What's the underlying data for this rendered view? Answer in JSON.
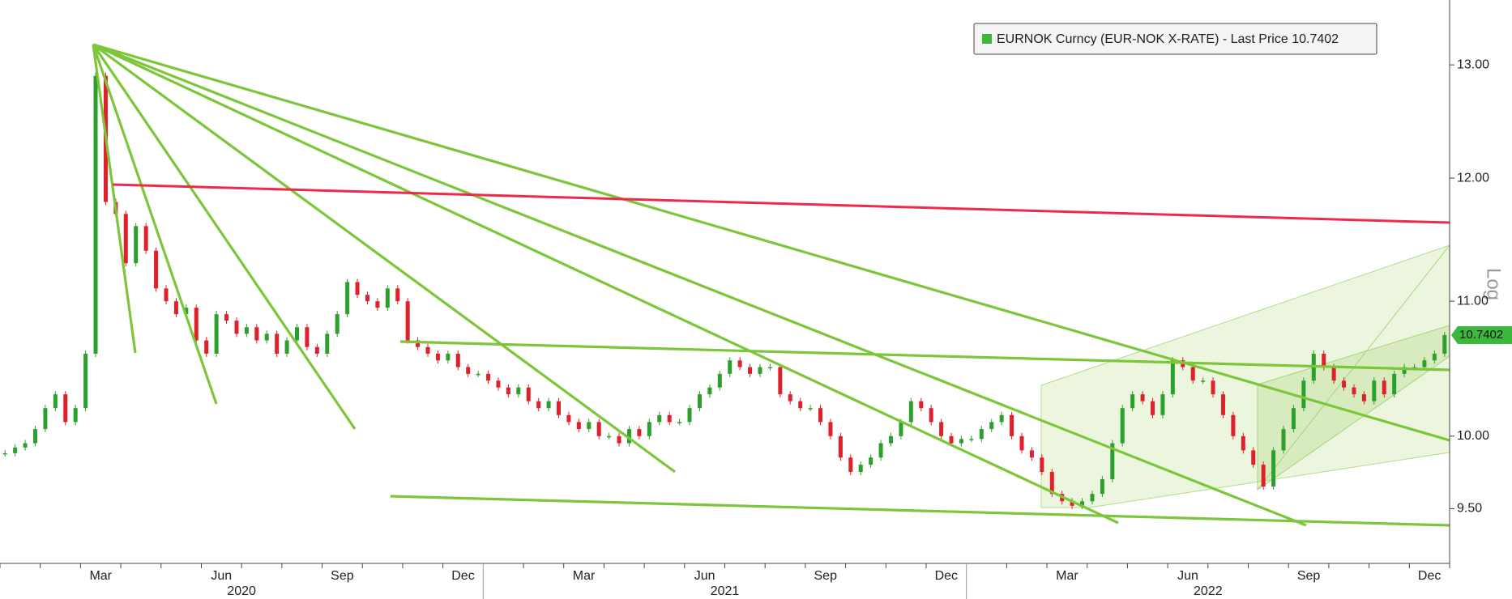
{
  "chart_data": {
    "type": "candlestick",
    "categories": [
      null,
      null,
      null,
      null,
      null,
      null,
      null,
      null,
      null,
      null,
      "Mar",
      null,
      null,
      null,
      null,
      null,
      null,
      null,
      null,
      null,
      null,
      null,
      "Jun",
      null,
      null,
      null,
      null,
      null,
      null,
      null,
      null,
      null,
      null,
      null,
      "Sep",
      null,
      null,
      null,
      null,
      null,
      null,
      null,
      null,
      null,
      null,
      null,
      "Dec",
      null,
      null,
      null,
      null,
      null,
      null,
      null,
      null,
      null,
      null,
      null,
      "Mar",
      null,
      null,
      null,
      null,
      null,
      null,
      null,
      null,
      null,
      null,
      null,
      "Jun",
      null,
      null,
      null,
      null,
      null,
      null,
      null,
      null,
      null,
      null,
      null,
      "Sep",
      null,
      null,
      null,
      null,
      null,
      null,
      null,
      null,
      null,
      null,
      null,
      "Dec",
      null,
      null,
      null,
      null,
      null,
      null,
      null,
      null,
      null,
      null,
      null,
      "Mar",
      null,
      null,
      null,
      null,
      null,
      null,
      null,
      null,
      null,
      null,
      null,
      "Jun",
      null,
      null,
      null,
      null,
      null,
      null,
      null,
      null,
      null,
      null,
      null,
      "Sep",
      null,
      null,
      null,
      null,
      null,
      null,
      null,
      null,
      null,
      null,
      null,
      "Dec",
      null
    ],
    "years": [
      "2020",
      "2021",
      "2022"
    ],
    "series": [
      {
        "name": "EURNOK Curncy (EUR-NOK X-RATE) - Last Price 10.7402",
        "color": "#3cb83c",
        "up_color": "#2ca02c",
        "down_color": "#e0202a",
        "values": [
          9.88,
          9.92,
          9.95,
          10.05,
          10.2,
          10.3,
          10.1,
          10.2,
          10.6,
          12.9,
          11.8,
          11.7,
          11.3,
          11.6,
          11.4,
          11.1,
          11.0,
          10.9,
          10.95,
          10.7,
          10.6,
          10.9,
          10.85,
          10.75,
          10.8,
          10.7,
          10.75,
          10.6,
          10.7,
          10.8,
          10.65,
          10.6,
          10.75,
          10.9,
          11.15,
          11.05,
          11.0,
          10.95,
          11.1,
          11.0,
          10.7,
          10.65,
          10.6,
          10.55,
          10.6,
          10.5,
          10.45,
          10.45,
          10.4,
          10.35,
          10.3,
          10.35,
          10.25,
          10.2,
          10.25,
          10.15,
          10.1,
          10.05,
          10.1,
          10.0,
          10.0,
          9.95,
          10.05,
          10.0,
          10.1,
          10.15,
          10.1,
          10.1,
          10.2,
          10.3,
          10.35,
          10.45,
          10.55,
          10.5,
          10.45,
          10.5,
          10.5,
          10.3,
          10.25,
          10.2,
          10.2,
          10.1,
          10.0,
          9.85,
          9.75,
          9.8,
          9.85,
          9.95,
          10.0,
          10.1,
          10.25,
          10.2,
          10.1,
          10.0,
          9.95,
          9.98,
          9.98,
          10.05,
          10.1,
          10.15,
          10.0,
          9.9,
          9.85,
          9.75,
          9.6,
          9.55,
          9.52,
          9.55,
          9.6,
          9.7,
          9.95,
          10.2,
          10.3,
          10.25,
          10.15,
          10.3,
          10.55,
          10.5,
          10.4,
          10.4,
          10.3,
          10.15,
          10.0,
          9.9,
          9.8,
          9.65,
          9.9,
          10.05,
          10.2,
          10.4,
          10.6,
          10.5,
          10.4,
          10.35,
          10.3,
          10.25,
          10.4,
          10.3,
          10.45,
          10.5,
          10.5,
          10.55,
          10.6,
          10.74
        ]
      }
    ],
    "last_price": 10.7402,
    "y_axis_label": "Log",
    "log_scale": true,
    "ylim": [
      9.14,
      13.61
    ],
    "yticks": [
      {
        "value": 9.5,
        "label": "9.50"
      },
      {
        "value": 10,
        "label": "10.00"
      },
      {
        "value": 11,
        "label": "11.00"
      },
      {
        "value": 12,
        "label": "12.00"
      },
      {
        "value": 13,
        "label": "13.00"
      }
    ]
  }
}
